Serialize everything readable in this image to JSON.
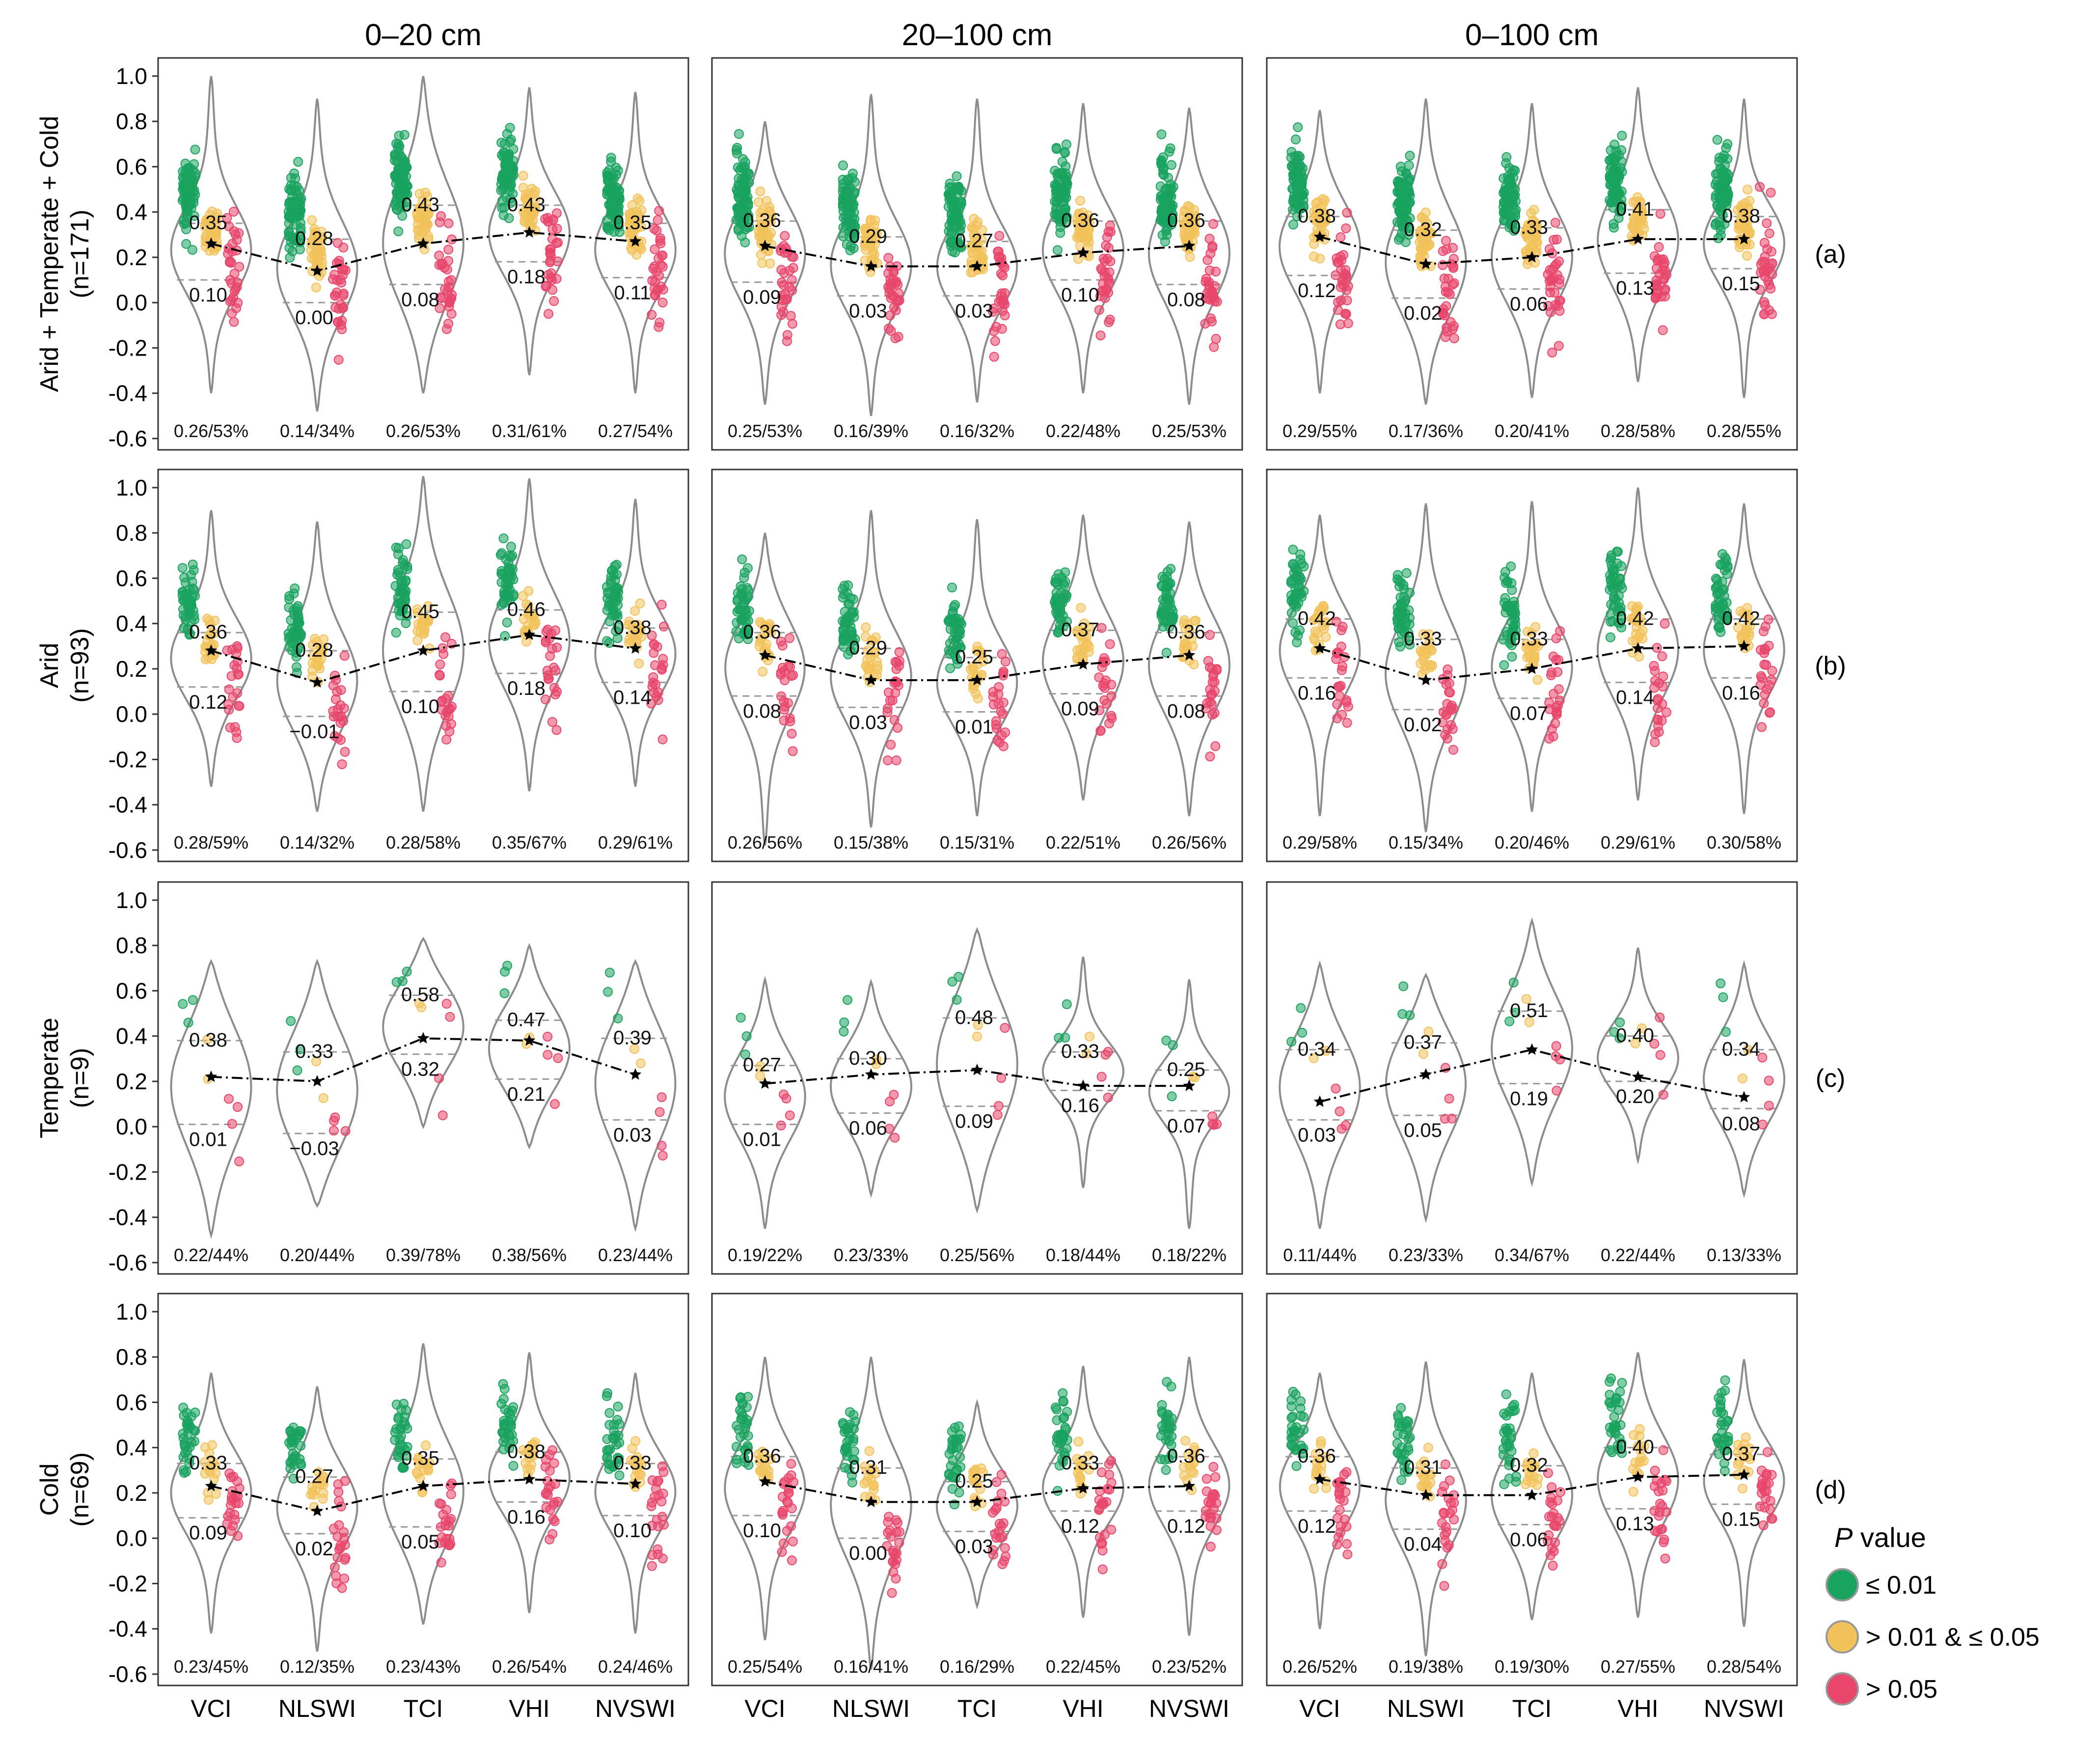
{
  "chart_data": {
    "type": "violin",
    "ylim": [
      -0.65,
      1.08
    ],
    "yticks": [
      "1.0",
      "0.8",
      "0.6",
      "0.4",
      "0.2",
      "0.0",
      "-0.2",
      "-0.4",
      "-0.6"
    ],
    "columns": [
      "0–20 cm",
      "20–100 cm",
      "0–100 cm"
    ],
    "indices": [
      "VCI",
      "NLSWI",
      "TCI",
      "VHI",
      "NVSWI"
    ],
    "rows": [
      {
        "label_line1": "Arid + Temperate + Cold",
        "label_line2": "(n=171)",
        "tag": "(a)"
      },
      {
        "label_line1": "Arid",
        "label_line2": "(n=93)",
        "tag": "(b)"
      },
      {
        "label_line1": "Temperate",
        "label_line2": "(n=9)",
        "tag": "(c)"
      },
      {
        "label_line1": "Cold",
        "label_line2": "(n=69)",
        "tag": "(d)"
      }
    ],
    "upper_quartile": [
      [
        [
          "0.35",
          "0.28",
          "0.43",
          "0.43",
          "0.35"
        ],
        [
          "0.36",
          "0.29",
          "0.27",
          "0.36",
          "0.36"
        ],
        [
          "0.38",
          "0.32",
          "0.33",
          "0.41",
          "0.38"
        ]
      ],
      [
        [
          "0.36",
          "0.28",
          "0.45",
          "0.46",
          "0.38"
        ],
        [
          "0.36",
          "0.29",
          "0.25",
          "0.37",
          "0.36"
        ],
        [
          "0.42",
          "0.33",
          "0.33",
          "0.42",
          "0.42"
        ]
      ],
      [
        [
          "0.38",
          "0.33",
          "0.58",
          "0.47",
          "0.39"
        ],
        [
          "0.27",
          "0.30",
          "0.48",
          "0.33",
          "0.25"
        ],
        [
          "0.34",
          "0.37",
          "0.51",
          "0.40",
          "0.34"
        ]
      ],
      [
        [
          "0.33",
          "0.27",
          "0.35",
          "0.38",
          "0.33"
        ],
        [
          "0.36",
          "0.31",
          "0.25",
          "0.33",
          "0.36"
        ],
        [
          "0.36",
          "0.31",
          "0.32",
          "0.40",
          "0.37"
        ]
      ]
    ],
    "lower_quartile": [
      [
        [
          "0.10",
          "0.00",
          "0.08",
          "0.18",
          "0.11"
        ],
        [
          "0.09",
          "0.03",
          "0.03",
          "0.10",
          "0.08"
        ],
        [
          "0.12",
          "0.02",
          "0.06",
          "0.13",
          "0.15"
        ]
      ],
      [
        [
          "0.12",
          "−0.01",
          "0.10",
          "0.18",
          "0.14"
        ],
        [
          "0.08",
          "0.03",
          "0.01",
          "0.09",
          "0.08"
        ],
        [
          "0.16",
          "0.02",
          "0.07",
          "0.14",
          "0.16"
        ]
      ],
      [
        [
          "0.01",
          "−0.03",
          "0.32",
          "0.21",
          "0.03"
        ],
        [
          "0.01",
          "0.06",
          "0.09",
          "0.16",
          "0.07"
        ],
        [
          "0.03",
          "0.05",
          "0.19",
          "0.20",
          "0.08"
        ]
      ],
      [
        [
          "0.09",
          "0.02",
          "0.05",
          "0.16",
          "0.10"
        ],
        [
          "0.10",
          "0.00",
          "0.03",
          "0.12",
          "0.12"
        ],
        [
          "0.12",
          "0.04",
          "0.06",
          "0.13",
          "0.15"
        ]
      ]
    ],
    "mean_summary": [
      [
        [
          "0.26/53%",
          "0.14/34%",
          "0.26/53%",
          "0.31/61%",
          "0.27/54%"
        ],
        [
          "0.25/53%",
          "0.16/39%",
          "0.16/32%",
          "0.22/48%",
          "0.25/53%"
        ],
        [
          "0.29/55%",
          "0.17/36%",
          "0.20/41%",
          "0.28/58%",
          "0.28/55%"
        ]
      ],
      [
        [
          "0.28/59%",
          "0.14/32%",
          "0.28/58%",
          "0.35/67%",
          "0.29/61%"
        ],
        [
          "0.26/56%",
          "0.15/38%",
          "0.15/31%",
          "0.22/51%",
          "0.26/56%"
        ],
        [
          "0.29/58%",
          "0.15/34%",
          "0.20/46%",
          "0.29/61%",
          "0.30/58%"
        ]
      ],
      [
        [
          "0.22/44%",
          "0.20/44%",
          "0.39/78%",
          "0.38/56%",
          "0.23/44%"
        ],
        [
          "0.19/22%",
          "0.23/33%",
          "0.25/56%",
          "0.18/44%",
          "0.18/22%"
        ],
        [
          "0.11/44%",
          "0.23/33%",
          "0.34/67%",
          "0.22/44%",
          "0.13/33%"
        ]
      ],
      [
        [
          "0.23/45%",
          "0.12/35%",
          "0.23/43%",
          "0.26/54%",
          "0.24/46%"
        ],
        [
          "0.25/54%",
          "0.16/41%",
          "0.16/29%",
          "0.22/45%",
          "0.23/52%"
        ],
        [
          "0.26/52%",
          "0.19/38%",
          "0.19/30%",
          "0.27/55%",
          "0.28/54%"
        ]
      ]
    ],
    "violin_range": [
      [
        [
          [
            -0.4,
            1.0
          ],
          [
            -0.48,
            0.9
          ],
          [
            -0.4,
            1.0
          ],
          [
            -0.32,
            0.95
          ],
          [
            -0.4,
            0.93
          ]
        ],
        [
          [
            -0.45,
            0.8
          ],
          [
            -0.5,
            0.92
          ],
          [
            -0.44,
            0.9
          ],
          [
            -0.4,
            0.88
          ],
          [
            -0.45,
            0.86
          ]
        ],
        [
          [
            -0.4,
            0.85
          ],
          [
            -0.45,
            0.9
          ],
          [
            -0.42,
            0.88
          ],
          [
            -0.35,
            0.95
          ],
          [
            -0.42,
            0.9
          ]
        ]
      ],
      [
        [
          [
            -0.32,
            0.9
          ],
          [
            -0.43,
            0.85
          ],
          [
            -0.43,
            1.05
          ],
          [
            -0.34,
            1.04
          ],
          [
            -0.32,
            0.95
          ]
        ],
        [
          [
            -0.58,
            0.8
          ],
          [
            -0.5,
            0.9
          ],
          [
            -0.45,
            0.86
          ],
          [
            -0.38,
            0.88
          ],
          [
            -0.45,
            0.85
          ]
        ],
        [
          [
            -0.45,
            0.88
          ],
          [
            -0.52,
            0.93
          ],
          [
            -0.43,
            0.94
          ],
          [
            -0.38,
            1.0
          ],
          [
            -0.44,
            0.93
          ]
        ]
      ],
      [
        [
          [
            -0.48,
            0.73
          ],
          [
            -0.35,
            0.73
          ],
          [
            0.0,
            0.83
          ],
          [
            -0.09,
            0.8
          ],
          [
            -0.45,
            0.73
          ]
        ],
        [
          [
            -0.45,
            0.65
          ],
          [
            -0.3,
            0.64
          ],
          [
            -0.37,
            0.87
          ],
          [
            -0.27,
            0.75
          ],
          [
            -0.45,
            0.65
          ]
        ],
        [
          [
            -0.45,
            0.72
          ],
          [
            -0.41,
            0.67
          ],
          [
            -0.25,
            0.91
          ],
          [
            -0.15,
            0.79
          ],
          [
            -0.3,
            0.72
          ]
        ]
      ],
      [
        [
          [
            -0.42,
            0.73
          ],
          [
            -0.5,
            0.67
          ],
          [
            -0.38,
            0.86
          ],
          [
            -0.33,
            0.82
          ],
          [
            -0.42,
            0.73
          ]
        ],
        [
          [
            -0.45,
            0.8
          ],
          [
            -0.58,
            0.8
          ],
          [
            -0.3,
            0.6
          ],
          [
            -0.35,
            0.76
          ],
          [
            -0.43,
            0.8
          ]
        ],
        [
          [
            -0.4,
            0.73
          ],
          [
            -0.52,
            0.78
          ],
          [
            -0.36,
            0.73
          ],
          [
            -0.35,
            0.82
          ],
          [
            -0.39,
            0.79
          ]
        ]
      ]
    ],
    "point_counts": [
      [
        [
          75,
          40,
          30
        ],
        [
          75,
          40,
          30
        ],
        [
          75,
          40,
          30
        ]
      ],
      [
        [
          45,
          22,
          22
        ],
        [
          45,
          22,
          22
        ],
        [
          45,
          22,
          22
        ]
      ],
      [
        [
          3,
          2,
          4
        ],
        [
          3,
          2,
          4
        ],
        [
          3,
          2,
          4
        ]
      ],
      [
        [
          30,
          15,
          22
        ],
        [
          30,
          15,
          22
        ],
        [
          30,
          15,
          22
        ]
      ]
    ],
    "legend": {
      "title": "P value",
      "items": [
        {
          "label": "≤ 0.01",
          "color": "#1aa35f"
        },
        {
          "label": "> 0.01 & ≤  0.05",
          "color": "#f2c25b"
        },
        {
          "label": "> 0.05",
          "color": "#e8466a"
        }
      ]
    },
    "colors": {
      "sig01": "#1aa35f",
      "sig05": "#f2c25b",
      "nonsig": "#e8466a",
      "violin": "#8c8c8c"
    }
  }
}
